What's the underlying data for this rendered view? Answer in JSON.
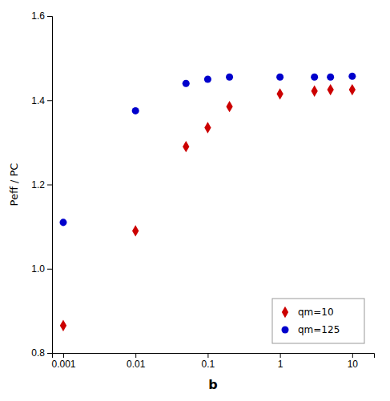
{
  "chart_data": {
    "type": "scatter",
    "xlabel": "b",
    "ylabel": "Peff / PC",
    "log": "x",
    "xlim": [
      0.0007,
      20
    ],
    "ylim": [
      0.8,
      1.6
    ],
    "xticks": [
      0.001,
      0.01,
      0.1,
      1,
      10
    ],
    "yticks": [
      0.8,
      {
        "value": 1.0,
        "label": "1.0"
      },
      1.2,
      1.4,
      1.6
    ],
    "grid": false,
    "legend": "lower right",
    "x": [
      0.001,
      0.01,
      0.05,
      0.1,
      0.2,
      1.0,
      3.0,
      5.0,
      10.0
    ],
    "series": [
      {
        "name": "qm=10",
        "color": "#cc0000",
        "marker": "diamond",
        "values": [
          0.865,
          1.09,
          1.29,
          1.335,
          1.385,
          1.415,
          1.422,
          1.425,
          1.425
        ]
      },
      {
        "name": "qm=125",
        "color": "#0000cc",
        "marker": "circle",
        "values": [
          1.11,
          1.375,
          1.44,
          1.45,
          1.455,
          1.455,
          1.455,
          1.455,
          1.457
        ]
      }
    ]
  }
}
